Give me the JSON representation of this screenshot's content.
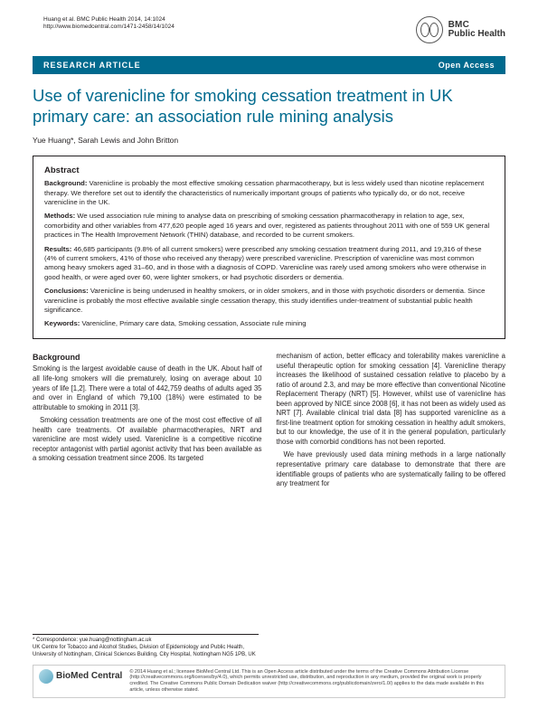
{
  "header": {
    "citation_line1": "Huang et al. BMC Public Health 2014, 14:1024",
    "citation_line2": "http://www.biomedcentral.com/1471-2458/14/1024",
    "brand_l1": "BMC",
    "brand_l2": "Public Health"
  },
  "band": {
    "left": "RESEARCH ARTICLE",
    "right": "Open Access"
  },
  "title": "Use of varenicline for smoking cessation treatment in UK primary care: an association rule mining analysis",
  "authors": "Yue Huang*, Sarah Lewis and John Britton",
  "abstract": {
    "heading": "Abstract",
    "background_label": "Background:",
    "background": " Varenicline is probably the most effective smoking cessation pharmacotherapy, but is less widely used than nicotine replacement therapy. We therefore set out to identify the characteristics of numerically important groups of patients who typically do, or do not, receive varenicline in the UK.",
    "methods_label": "Methods:",
    "methods": " We used association rule mining to analyse data on prescribing of smoking cessation pharmacotherapy in relation to age, sex, comorbidity and other variables from 477,620 people aged 16 years and over, registered as patients throughout 2011 with one of 559 UK general practices in The Health Improvement Network (THIN) database, and recorded to be current smokers.",
    "results_label": "Results:",
    "results": " 46,685 participants (9.8% of all current smokers) were prescribed any smoking cessation treatment during 2011, and 19,316 of these (4% of current smokers, 41% of those who received any therapy) were prescribed varenicline. Prescription of varenicline was most common among heavy smokers aged 31–60, and in those with a diagnosis of COPD. Varenicline was rarely used among smokers who were otherwise in good health, or were aged over 60, were lighter smokers, or had psychotic disorders or dementia.",
    "conclusions_label": "Conclusions:",
    "conclusions": " Varenicline is being underused in healthy smokers, or in older smokers, and in those with psychotic disorders or dementia. Since varenicline is probably the most effective available single cessation therapy, this study identifies under-treatment of substantial public health significance.",
    "keywords_label": "Keywords:",
    "keywords": " Varenicline, Primary care data, Smoking cessation, Associate rule mining"
  },
  "body": {
    "heading": "Background",
    "p1": "Smoking is the largest avoidable cause of death in the UK. About half of all life-long smokers will die prematurely, losing on average about 10 years of life [1,2]. There were a total of 442,759 deaths of adults aged 35 and over in England of which 79,100 (18%) were estimated to be attributable to smoking in 2011 [3].",
    "p2": "Smoking cessation treatments are one of the most cost effective of all health care treatments. Of available pharmacotherapies, NRT and varenicline are most widely used. Varenicline is a competitive nicotine receptor antagonist with partial agonist activity that has been available as a smoking cessation treatment since 2006. Its targeted",
    "p3": "mechanism of action, better efficacy and tolerability makes varenicline a useful therapeutic option for smoking cessation [4]. Varenicline therapy increases the likelihood of sustained cessation relative to placebo by a ratio of around 2.3, and may be more effective than conventional Nicotine Replacement Therapy (NRT) [5]. However, whilst use of varenicline has been approved by NICE since 2008 [6], it has not been as widely used as NRT [7]. Available clinical trial data [8] has supported varenicline as a first-line treatment option for smoking cessation in healthy adult smokers, but to our knowledge, the use of it in the general population, particularly those with comorbid conditions has not been reported.",
    "p4": "We have previously used data mining methods in a large nationally representative primary care database to demonstrate that there are identifiable groups of patients who are systematically failing to be offered any treatment for"
  },
  "footer": {
    "corr1": "* Correspondence: yue.huang@nottingham.ac.uk",
    "corr2": "UK Centre for Tobacco and Alcohol Studies, Division of Epidemiology and Public Health, University of Nottingham, Clinical Sciences Building, City Hospital, Nottingham NG5 1PB, UK",
    "bmc": "BioMed Central",
    "license": "© 2014 Huang et al.; licensee BioMed Central Ltd. This is an Open Access article distributed under the terms of the Creative Commons Attribution License (http://creativecommons.org/licenses/by/4.0), which permits unrestricted use, distribution, and reproduction in any medium, provided the original work is properly credited. The Creative Commons Public Domain Dedication waiver (http://creativecommons.org/publicdomain/zero/1.0/) applies to the data made available in this article, unless otherwise stated."
  },
  "colors": {
    "brand": "#006a8e",
    "text": "#231f20"
  }
}
